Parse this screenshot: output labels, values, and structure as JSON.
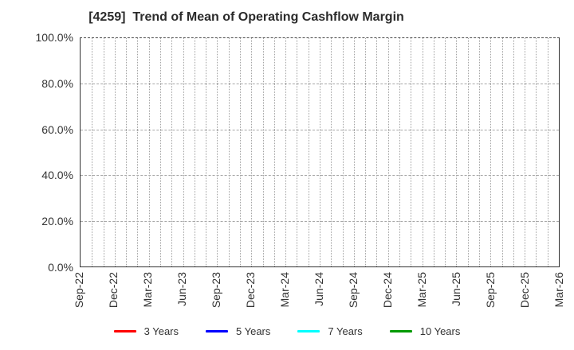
{
  "chart_data": {
    "type": "line",
    "title": "[4259]  Trend of Mean of Operating Cashflow Margin",
    "xlabel": "",
    "ylabel": "",
    "ylim": [
      0,
      100
    ],
    "y_unit": "%",
    "grid": true,
    "legend_position": "bottom",
    "x_tick_labels": [
      "Sep-22",
      "Dec-22",
      "Mar-23",
      "Jun-23",
      "Sep-23",
      "Dec-23",
      "Mar-24",
      "Jun-24",
      "Sep-24",
      "Dec-24",
      "Mar-25",
      "Jun-25",
      "Sep-25",
      "Dec-25",
      "Mar-26"
    ],
    "y_tick_labels": [
      "0.0%",
      "20.0%",
      "40.0%",
      "60.0%",
      "80.0%",
      "100.0%"
    ],
    "y_tick_values": [
      0,
      20,
      40,
      60,
      80,
      100
    ],
    "minor_x_divisions_per_interval": 3,
    "series": [
      {
        "name": "3 Years",
        "color": "#ff0000",
        "x": [],
        "values": []
      },
      {
        "name": "5 Years",
        "color": "#0000ff",
        "x": [],
        "values": []
      },
      {
        "name": "7 Years",
        "color": "#00ffff",
        "x": [],
        "values": []
      },
      {
        "name": "10 Years",
        "color": "#009900",
        "x": [],
        "values": []
      }
    ]
  }
}
